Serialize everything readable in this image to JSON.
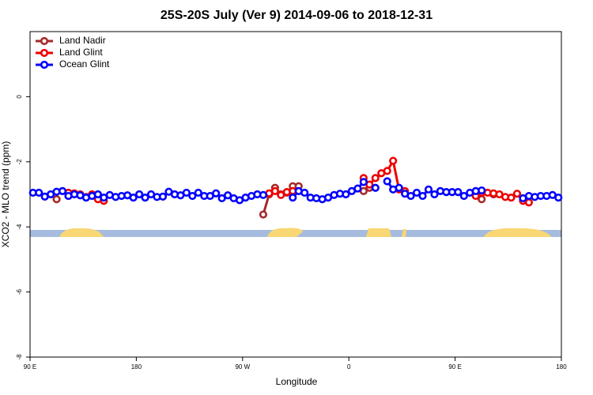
{
  "chart_data": {
    "type": "line",
    "title": "25S-20S July (Ver 9)   2014-09-06 to 2018-12-31",
    "x_label": "Longitude",
    "y_label": "XCO2 - MLO trend (ppm)",
    "xlim": [
      90,
      540
    ],
    "xticks": [
      {
        "value": 90,
        "label": "90 E"
      },
      180,
      {
        "value": 270,
        "label": "90 W"
      },
      {
        "value": 360,
        "label": "0"
      },
      {
        "value": 450,
        "label": "90 E"
      },
      {
        "value": 540,
        "label": "180"
      }
    ],
    "ylim": [
      -8,
      2
    ],
    "yticks": [
      -8,
      -6,
      -4,
      -2,
      0
    ],
    "legend": "top-left",
    "series": [
      {
        "name": "Land Nadir",
        "color": "#a52a2a",
        "x": [
          112.5,
          117.5,
          122.5,
          127.5,
          287.5,
          292.5,
          297.5,
          302.5,
          307.5,
          312.5,
          317.5,
          322.5,
          372.5,
          377.5,
          382.5,
          472.5,
          477.5,
          482.5
        ],
        "values": [
          -3.15,
          null,
          -3.05,
          null,
          -3.62,
          -3.0,
          -2.8,
          -3.0,
          -2.95,
          -2.75,
          -2.75,
          null,
          -2.9,
          -2.8,
          null,
          -3.15,
          null,
          -3.0
        ]
      },
      {
        "name": "Land Glint",
        "color": "#ee0000",
        "x": [
          122.5,
          127.5,
          132.5,
          137.5,
          142.5,
          147.5,
          152.5,
          157.5,
          292.5,
          297.5,
          302.5,
          307.5,
          312.5,
          317.5,
          372.5,
          377.5,
          382.5,
          387.5,
          392.5,
          397.5,
          402.5,
          407.5,
          412.5,
          467.5,
          472.5,
          477.5,
          482.5,
          487.5,
          492.5,
          497.5,
          502.5,
          507.5,
          512.5
        ],
        "values": [
          -2.95,
          -2.97,
          -3.0,
          -3.08,
          -3.0,
          -3.15,
          -3.2,
          null,
          -2.97,
          -2.9,
          -3.02,
          -2.93,
          -2.9,
          null,
          -2.5,
          -2.7,
          -2.5,
          -2.35,
          -2.28,
          -1.97,
          -2.85,
          -2.9,
          null,
          -3.05,
          -2.95,
          -2.95,
          -2.97,
          -3.0,
          -3.08,
          -3.1,
          -2.98,
          -3.2,
          -3.25
        ]
      },
      {
        "name": "Ocean Glint",
        "color": "#0000ff",
        "x": [
          92.5,
          97.5,
          102.5,
          107.5,
          112.5,
          117.5,
          122.5,
          127.5,
          132.5,
          137.5,
          142.5,
          147.5,
          152.5,
          157.5,
          162.5,
          167.5,
          172.5,
          177.5,
          182.5,
          187.5,
          192.5,
          197.5,
          202.5,
          207.5,
          212.5,
          217.5,
          222.5,
          227.5,
          232.5,
          237.5,
          242.5,
          247.5,
          252.5,
          257.5,
          262.5,
          267.5,
          272.5,
          277.5,
          282.5,
          287.5,
          292.5,
          312.5,
          317.5,
          322.5,
          327.5,
          332.5,
          337.5,
          342.5,
          347.5,
          352.5,
          357.5,
          362.5,
          367.5,
          372.5,
          377.5,
          382.5,
          387.5,
          392.5,
          397.5,
          402.5,
          407.5,
          412.5,
          417.5,
          422.5,
          427.5,
          432.5,
          437.5,
          442.5,
          447.5,
          452.5,
          457.5,
          462.5,
          467.5,
          472.5,
          477.5,
          507.5,
          512.5,
          517.5,
          522.5,
          527.5,
          532.5,
          537.5
        ],
        "values": [
          -2.95,
          -2.95,
          -3.07,
          -3.0,
          -2.92,
          -2.9,
          -3.05,
          -3.0,
          -3.03,
          -3.1,
          -3.05,
          -3.0,
          -3.1,
          -3.02,
          -3.08,
          -3.05,
          -3.03,
          -3.1,
          -3.0,
          -3.1,
          -3.0,
          -3.08,
          -3.07,
          -2.92,
          -3.0,
          -3.03,
          -2.95,
          -3.05,
          -2.95,
          -3.05,
          -3.05,
          -2.97,
          -3.12,
          -3.03,
          -3.12,
          -3.18,
          -3.1,
          -3.05,
          -3.0,
          -3.02,
          null,
          -3.1,
          -2.9,
          -2.95,
          -3.1,
          -3.12,
          -3.15,
          -3.1,
          -3.02,
          -2.98,
          -3.0,
          -2.9,
          -2.82,
          -2.62,
          null,
          -2.8,
          null,
          -2.6,
          -2.85,
          -2.8,
          -2.98,
          -3.05,
          -2.95,
          -3.05,
          -2.85,
          -3.0,
          -2.9,
          -2.93,
          -2.93,
          -2.93,
          -3.05,
          -2.95,
          -2.9,
          -2.88,
          null,
          -3.12,
          -3.05,
          -3.08,
          -3.05,
          -3.05,
          -3.02,
          -3.1
        ]
      }
    ]
  }
}
